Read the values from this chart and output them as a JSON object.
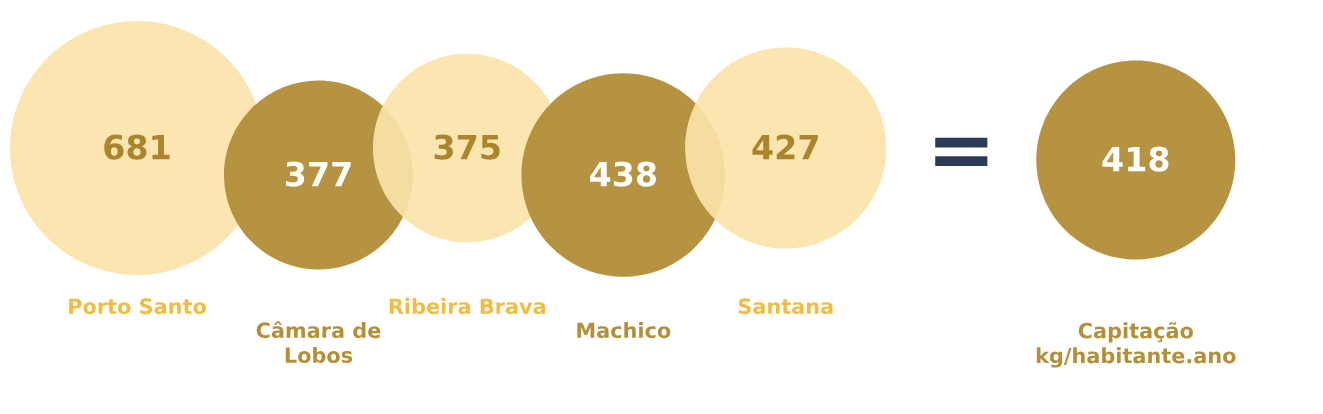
{
  "chart_data": {
    "type": "other",
    "categories": [
      "Porto Santo",
      "Câmara de\nLobos",
      "Ribeira Brava",
      "Machico",
      "Santana",
      "Capitação\nkg/habitante.ano"
    ],
    "values": [
      681,
      377,
      375,
      438,
      427,
      418
    ],
    "colors": [
      "#fbe3aa",
      "#b38f3a",
      "#fbe3aa",
      "#b38f3a",
      "#fbe3aa",
      "#b38f3a"
    ],
    "data_labels": true,
    "annotations": [
      "="
    ]
  }
}
